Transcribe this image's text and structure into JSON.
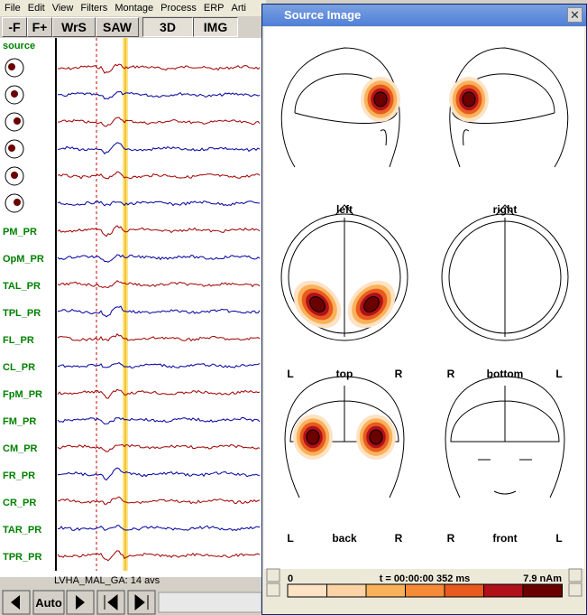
{
  "menu": {
    "items": [
      "File",
      "Edit",
      "View",
      "Filters",
      "Montage",
      "Process",
      "ERP",
      "Arti"
    ]
  },
  "toolbar": {
    "buttons": [
      "-F",
      "F+",
      "WrS",
      "SAW",
      "3D",
      "IMG"
    ]
  },
  "channels": {
    "source_label": "source",
    "labels": [
      "PM_PR",
      "OpM_PR",
      "TAL_PR",
      "TPL_PR",
      "FL_PR",
      "CL_PR",
      "FpM_PR",
      "FM_PR",
      "CM_PR",
      "FR_PR",
      "CR_PR",
      "TAR_PR",
      "TPR_PR"
    ]
  },
  "footer": {
    "status": "LVHA_MAL_GA: 14 avs",
    "auto": "Auto"
  },
  "window": {
    "title": "Source Image",
    "views": [
      {
        "label": "left"
      },
      {
        "label": "right"
      },
      {
        "label": "top",
        "side_left": "L",
        "side_right": "R"
      },
      {
        "label": "bottom",
        "side_left": "R",
        "side_right": "L"
      },
      {
        "label": "back",
        "side_left": "L",
        "side_right": "R"
      },
      {
        "label": "front",
        "side_left": "R",
        "side_right": "L"
      }
    ]
  },
  "colorbar": {
    "min": "0",
    "time": "t = 00:00:00  352 ms",
    "max": "7.9 nAm"
  }
}
